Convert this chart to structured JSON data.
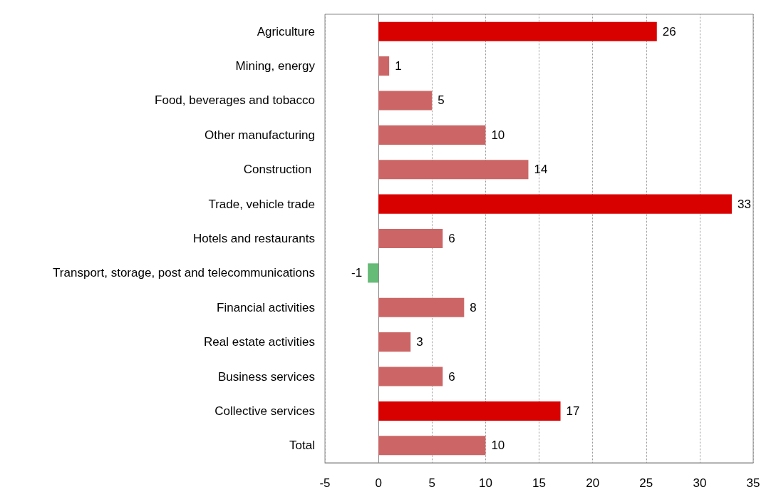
{
  "chart_data": {
    "type": "bar",
    "orientation": "horizontal",
    "categories": [
      "Agriculture",
      "Mining, energy",
      "Food, beverages and tobacco",
      "Other manufacturing",
      "Construction ",
      "Trade, vehicle trade",
      "Hotels and restaurants",
      "Transport, storage, post and telecommunications",
      "Financial activities",
      "Real estate activities",
      "Business services",
      "Collective services",
      "Total"
    ],
    "values": [
      26,
      1,
      5,
      10,
      14,
      33,
      6,
      -1,
      8,
      3,
      6,
      17,
      10
    ],
    "data_labels": true,
    "colors": [
      "#d90000",
      "#cc6666",
      "#cc6666",
      "#cc6666",
      "#cc6666",
      "#d90000",
      "#cc6666",
      "#66bb77",
      "#cc6666",
      "#cc6666",
      "#cc6666",
      "#d90000",
      "#cc6666"
    ],
    "xlim": [
      -5,
      35
    ],
    "xticks": [
      -5,
      0,
      5,
      10,
      15,
      20,
      25,
      30,
      35
    ],
    "grid": "x"
  }
}
